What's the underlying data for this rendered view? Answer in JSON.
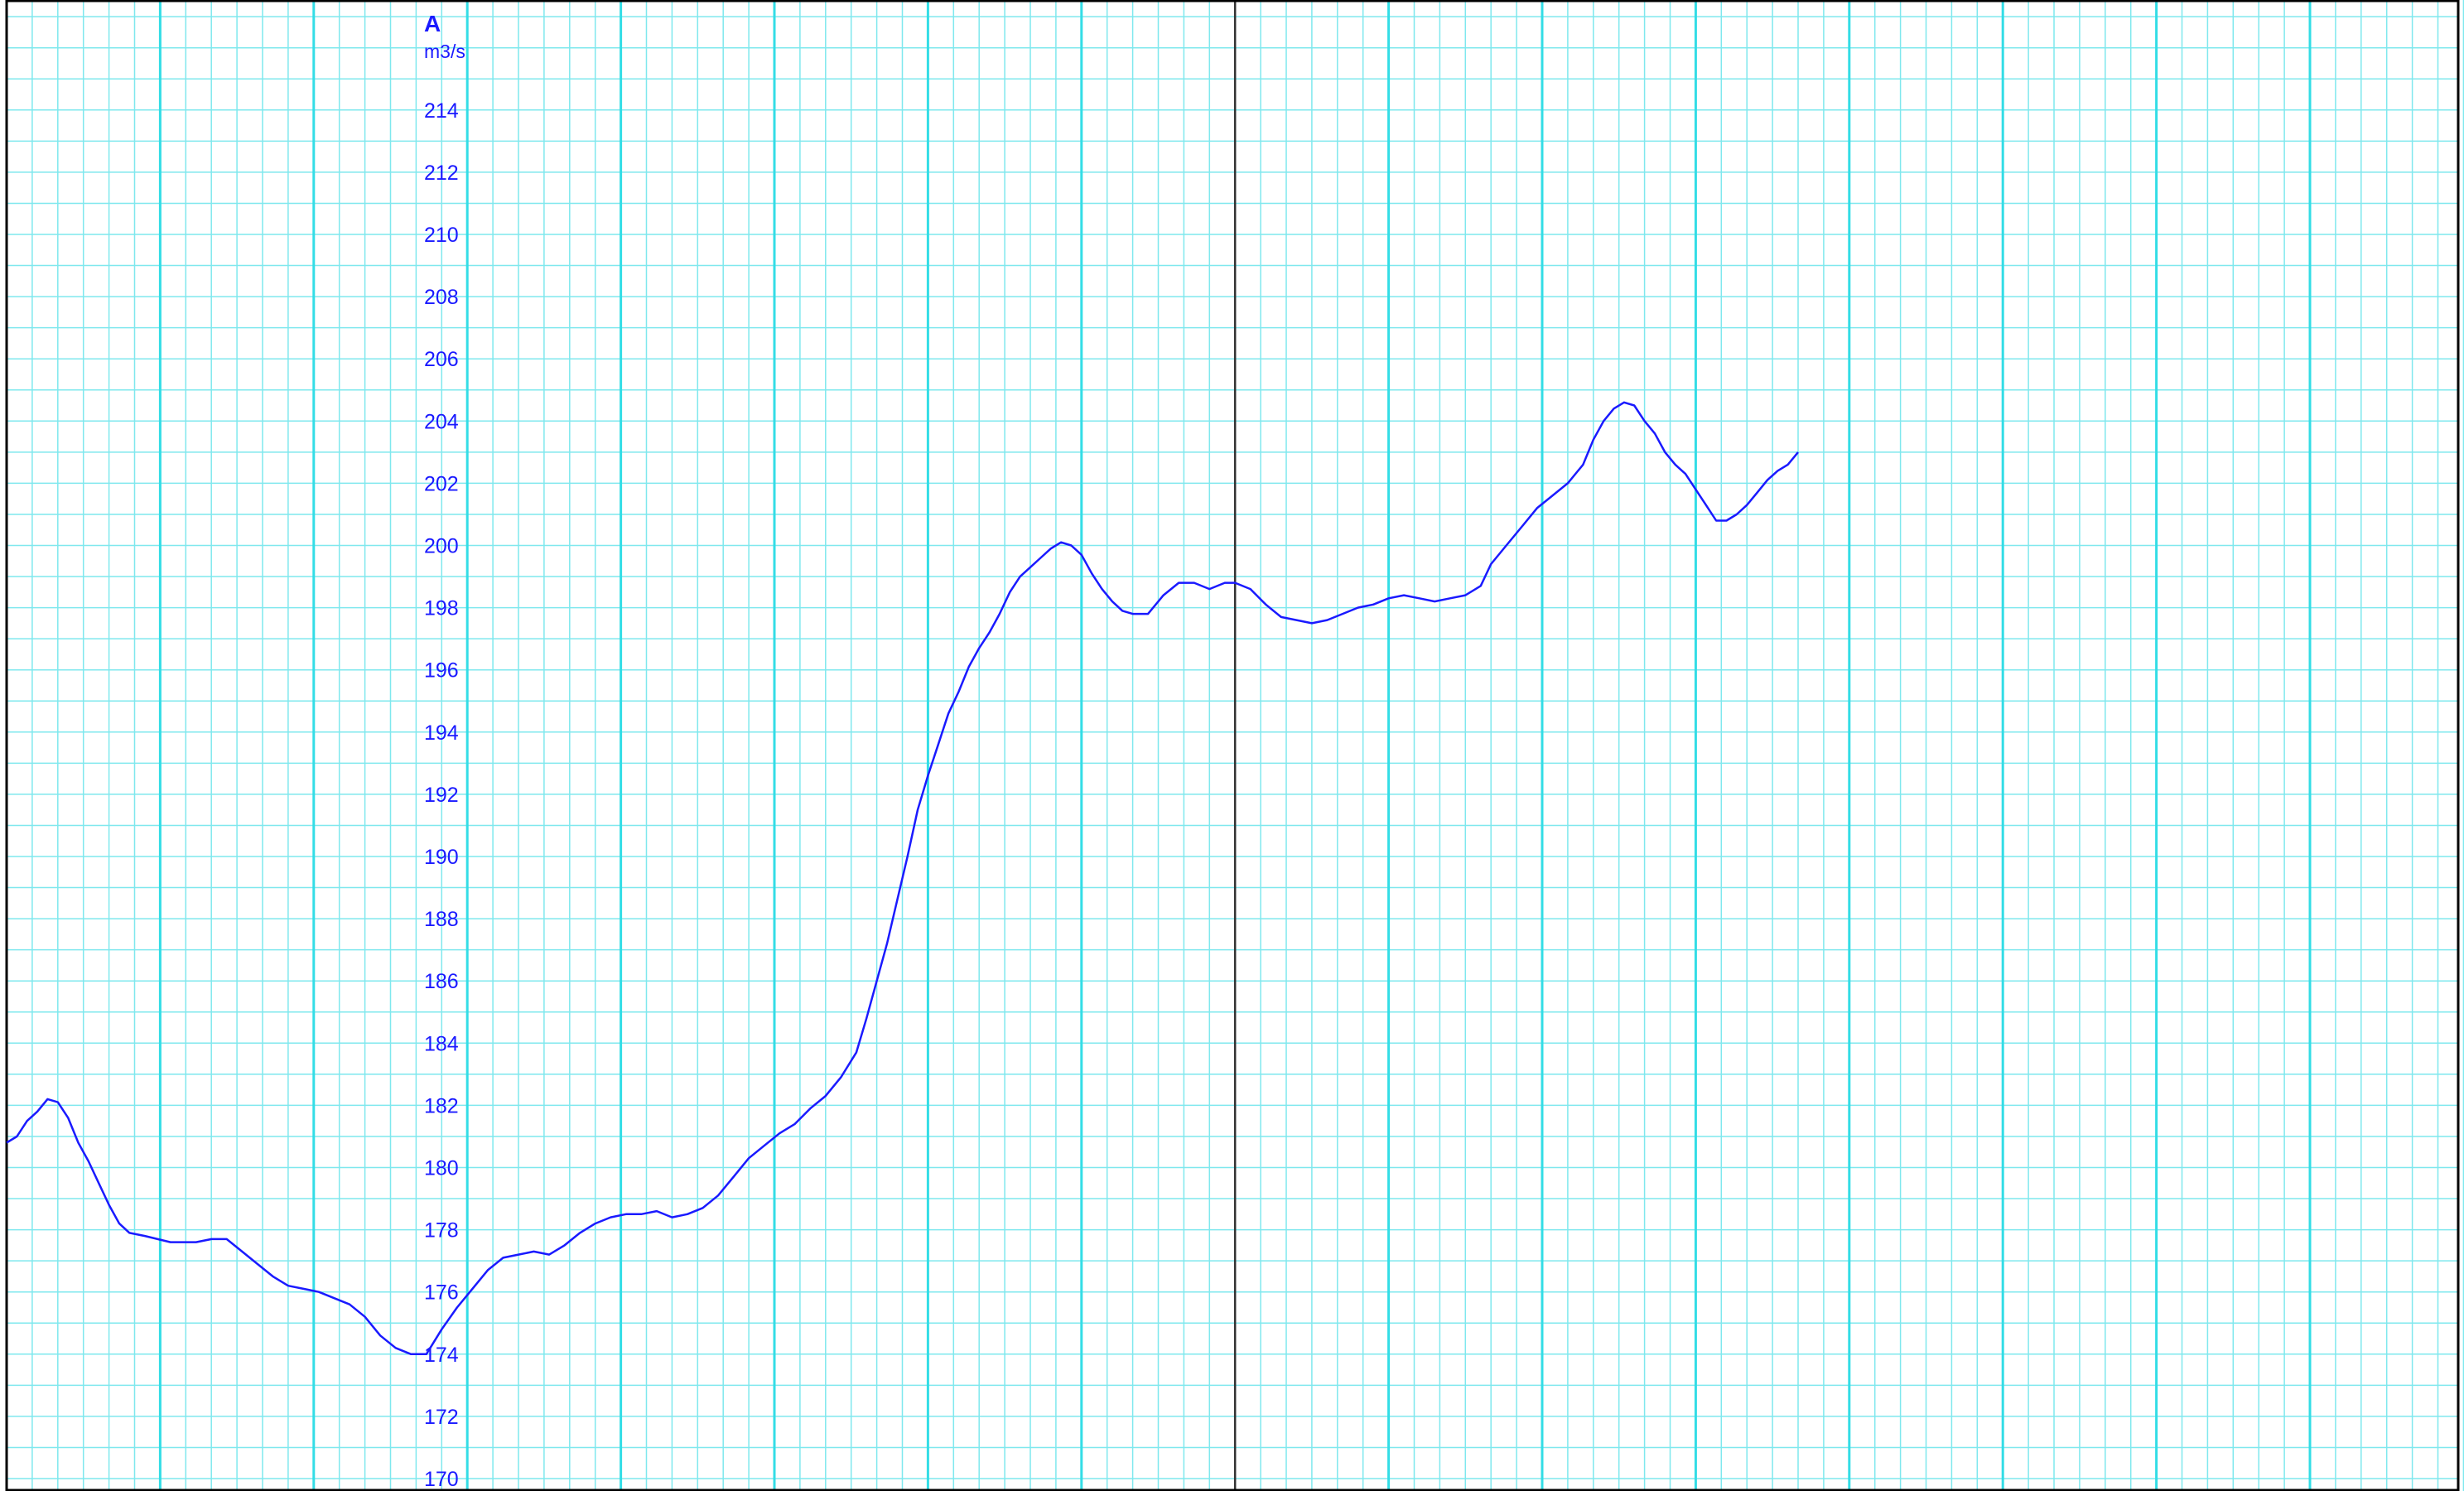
{
  "colors": {
    "grid_minor": "#7fe8ee",
    "grid_major": "#33dde6",
    "frame": "#000000",
    "cursor_line": "#333333",
    "series": "#1a1aff",
    "axis_text": "#1a1aff"
  },
  "chart_data": {
    "type": "line",
    "title": "",
    "axis_letter": "A",
    "unit": "m3/s",
    "ylim": [
      169,
      217
    ],
    "yticks": [
      170,
      172,
      174,
      176,
      178,
      180,
      182,
      184,
      186,
      188,
      190,
      192,
      194,
      196,
      198,
      200,
      202,
      204,
      206,
      208,
      210,
      212,
      214
    ],
    "x_range": [
      0,
      48
    ],
    "x_minor_step": 0.5,
    "x_major_step": 3,
    "grid": true,
    "cursor_x": 24,
    "series": [
      {
        "values": [
          [
            0.0,
            180.8
          ],
          [
            0.2,
            181.0
          ],
          [
            0.4,
            181.5
          ],
          [
            0.6,
            181.8
          ],
          [
            0.8,
            182.2
          ],
          [
            1.0,
            182.1
          ],
          [
            1.2,
            181.6
          ],
          [
            1.4,
            180.8
          ],
          [
            1.6,
            180.2
          ],
          [
            1.8,
            179.5
          ],
          [
            2.0,
            178.8
          ],
          [
            2.2,
            178.2
          ],
          [
            2.4,
            177.9
          ],
          [
            2.7,
            177.8
          ],
          [
            3.2,
            177.6
          ],
          [
            3.7,
            177.6
          ],
          [
            4.0,
            177.7
          ],
          [
            4.3,
            177.7
          ],
          [
            4.6,
            177.3
          ],
          [
            4.9,
            176.9
          ],
          [
            5.2,
            176.5
          ],
          [
            5.5,
            176.2
          ],
          [
            5.8,
            176.1
          ],
          [
            6.1,
            176.0
          ],
          [
            6.4,
            175.8
          ],
          [
            6.7,
            175.6
          ],
          [
            7.0,
            175.2
          ],
          [
            7.3,
            174.6
          ],
          [
            7.6,
            174.2
          ],
          [
            7.9,
            174.0
          ],
          [
            8.2,
            174.0
          ],
          [
            8.5,
            174.8
          ],
          [
            8.8,
            175.5
          ],
          [
            9.1,
            176.1
          ],
          [
            9.4,
            176.7
          ],
          [
            9.7,
            177.1
          ],
          [
            10.0,
            177.2
          ],
          [
            10.3,
            177.3
          ],
          [
            10.6,
            177.2
          ],
          [
            10.9,
            177.5
          ],
          [
            11.2,
            177.9
          ],
          [
            11.5,
            178.2
          ],
          [
            11.8,
            178.4
          ],
          [
            12.1,
            178.5
          ],
          [
            12.4,
            178.5
          ],
          [
            12.7,
            178.6
          ],
          [
            13.0,
            178.4
          ],
          [
            13.3,
            178.5
          ],
          [
            13.6,
            178.7
          ],
          [
            13.9,
            179.1
          ],
          [
            14.2,
            179.7
          ],
          [
            14.5,
            180.3
          ],
          [
            14.8,
            180.7
          ],
          [
            15.1,
            181.1
          ],
          [
            15.4,
            181.4
          ],
          [
            15.7,
            181.9
          ],
          [
            16.0,
            182.3
          ],
          [
            16.3,
            182.9
          ],
          [
            16.6,
            183.7
          ],
          [
            16.8,
            184.8
          ],
          [
            17.0,
            186.0
          ],
          [
            17.2,
            187.2
          ],
          [
            17.4,
            188.6
          ],
          [
            17.6,
            190.0
          ],
          [
            17.8,
            191.5
          ],
          [
            18.0,
            192.6
          ],
          [
            18.2,
            193.6
          ],
          [
            18.4,
            194.6
          ],
          [
            18.6,
            195.3
          ],
          [
            18.8,
            196.1
          ],
          [
            19.0,
            196.7
          ],
          [
            19.2,
            197.2
          ],
          [
            19.4,
            197.8
          ],
          [
            19.6,
            198.5
          ],
          [
            19.8,
            199.0
          ],
          [
            20.0,
            199.3
          ],
          [
            20.2,
            199.6
          ],
          [
            20.4,
            199.9
          ],
          [
            20.6,
            200.1
          ],
          [
            20.8,
            200.0
          ],
          [
            21.0,
            199.7
          ],
          [
            21.2,
            199.1
          ],
          [
            21.4,
            198.6
          ],
          [
            21.6,
            198.2
          ],
          [
            21.8,
            197.9
          ],
          [
            22.0,
            197.8
          ],
          [
            22.3,
            197.8
          ],
          [
            22.6,
            198.4
          ],
          [
            22.9,
            198.8
          ],
          [
            23.2,
            198.8
          ],
          [
            23.5,
            198.6
          ],
          [
            23.8,
            198.8
          ],
          [
            24.0,
            198.8
          ],
          [
            24.3,
            198.6
          ],
          [
            24.6,
            198.1
          ],
          [
            24.9,
            197.7
          ],
          [
            25.2,
            197.6
          ],
          [
            25.5,
            197.5
          ],
          [
            25.8,
            197.6
          ],
          [
            26.1,
            197.8
          ],
          [
            26.4,
            198.0
          ],
          [
            26.7,
            198.1
          ],
          [
            27.0,
            198.3
          ],
          [
            27.3,
            198.4
          ],
          [
            27.6,
            198.3
          ],
          [
            27.9,
            198.2
          ],
          [
            28.2,
            198.3
          ],
          [
            28.5,
            198.4
          ],
          [
            28.8,
            198.7
          ],
          [
            29.0,
            199.4
          ],
          [
            29.3,
            200.0
          ],
          [
            29.6,
            200.6
          ],
          [
            29.9,
            201.2
          ],
          [
            30.2,
            201.6
          ],
          [
            30.5,
            202.0
          ],
          [
            30.8,
            202.6
          ],
          [
            31.0,
            203.4
          ],
          [
            31.2,
            204.0
          ],
          [
            31.4,
            204.4
          ],
          [
            31.6,
            204.6
          ],
          [
            31.8,
            204.5
          ],
          [
            32.0,
            204.0
          ],
          [
            32.2,
            203.6
          ],
          [
            32.4,
            203.0
          ],
          [
            32.6,
            202.6
          ],
          [
            32.8,
            202.3
          ],
          [
            33.0,
            201.8
          ],
          [
            33.2,
            201.3
          ],
          [
            33.4,
            200.8
          ],
          [
            33.6,
            200.8
          ],
          [
            33.8,
            201.0
          ],
          [
            34.0,
            201.3
          ],
          [
            34.2,
            201.7
          ],
          [
            34.4,
            202.1
          ],
          [
            34.6,
            202.4
          ],
          [
            34.8,
            202.6
          ],
          [
            35.0,
            203.0
          ]
        ]
      }
    ]
  }
}
